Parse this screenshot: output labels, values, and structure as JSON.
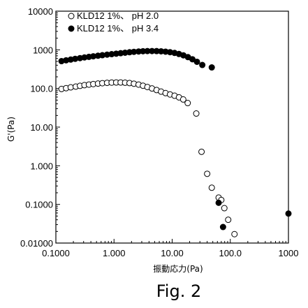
{
  "chart_data": {
    "type": "scatter",
    "title": "",
    "xlabel": "振動応力(Pa)",
    "ylabel": "G'(Pa)",
    "x_scale": "log",
    "y_scale": "log",
    "xlim": [
      0.1,
      1000
    ],
    "ylim": [
      0.01,
      10000
    ],
    "x_ticks": [
      {
        "value": 0.1,
        "label": "0.1000"
      },
      {
        "value": 1,
        "label": "1.000"
      },
      {
        "value": 10,
        "label": "10.00"
      },
      {
        "value": 100,
        "label": "100.0"
      },
      {
        "value": 1000,
        "label": "1000"
      }
    ],
    "y_ticks": [
      {
        "value": 10000,
        "label": "10000"
      },
      {
        "value": 1000,
        "label": "1000"
      },
      {
        "value": 100,
        "label": "100.0"
      },
      {
        "value": 10,
        "label": "10.00"
      },
      {
        "value": 1,
        "label": "1.000"
      },
      {
        "value": 0.1,
        "label": "0.1000"
      },
      {
        "value": 0.01,
        "label": "0.01000"
      }
    ],
    "grid": false,
    "legend_position": "top-left",
    "caption": "Fig. 2",
    "series": [
      {
        "name": "KLD12 1%、 pH 2.0",
        "marker": "open-circle",
        "color": "#000000",
        "points": [
          [
            0.125,
            97
          ],
          [
            0.15,
            102
          ],
          [
            0.18,
            107
          ],
          [
            0.22,
            112
          ],
          [
            0.26,
            117
          ],
          [
            0.31,
            122
          ],
          [
            0.37,
            126
          ],
          [
            0.44,
            130
          ],
          [
            0.53,
            134
          ],
          [
            0.63,
            137
          ],
          [
            0.76,
            140
          ],
          [
            0.91,
            142
          ],
          [
            1.09,
            143
          ],
          [
            1.3,
            143
          ],
          [
            1.55,
            141
          ],
          [
            1.85,
            138
          ],
          [
            2.2,
            133
          ],
          [
            2.65,
            126
          ],
          [
            3.15,
            118
          ],
          [
            3.75,
            109
          ],
          [
            4.5,
            100
          ],
          [
            5.4,
            91
          ],
          [
            6.45,
            83
          ],
          [
            7.7,
            76
          ],
          [
            9.2,
            70
          ],
          [
            11,
            65
          ],
          [
            13.1,
            59
          ],
          [
            15.5,
            52
          ],
          [
            18.5,
            42
          ],
          [
            26,
            22.5
          ],
          [
            32,
            2.3
          ],
          [
            40,
            0.62
          ],
          [
            48,
            0.27
          ],
          [
            63,
            0.15
          ],
          [
            70,
            0.13
          ],
          [
            79,
            0.08
          ],
          [
            92,
            0.04
          ],
          [
            118,
            0.017
          ]
        ]
      },
      {
        "name": "KLD12 1%、 pH 3.4",
        "marker": "filled-circle",
        "color": "#000000",
        "points": [
          [
            0.125,
            510
          ],
          [
            0.15,
            535
          ],
          [
            0.18,
            560
          ],
          [
            0.215,
            585
          ],
          [
            0.26,
            610
          ],
          [
            0.31,
            635
          ],
          [
            0.37,
            658
          ],
          [
            0.44,
            680
          ],
          [
            0.53,
            703
          ],
          [
            0.63,
            726
          ],
          [
            0.76,
            750
          ],
          [
            0.91,
            772
          ],
          [
            1.09,
            795
          ],
          [
            1.3,
            818
          ],
          [
            1.55,
            842
          ],
          [
            1.85,
            866
          ],
          [
            2.2,
            888
          ],
          [
            2.65,
            906
          ],
          [
            3.15,
            920
          ],
          [
            3.75,
            928
          ],
          [
            4.5,
            930
          ],
          [
            5.4,
            926
          ],
          [
            6.45,
            915
          ],
          [
            7.7,
            896
          ],
          [
            9.2,
            868
          ],
          [
            11,
            830
          ],
          [
            13.1,
            780
          ],
          [
            15.6,
            720
          ],
          [
            18.7,
            648
          ],
          [
            22.3,
            570
          ],
          [
            26.7,
            490
          ],
          [
            33,
            405
          ],
          [
            48,
            350
          ],
          [
            63,
            0.11
          ],
          [
            75,
            0.026
          ],
          [
            1000,
            0.058
          ]
        ]
      }
    ]
  }
}
